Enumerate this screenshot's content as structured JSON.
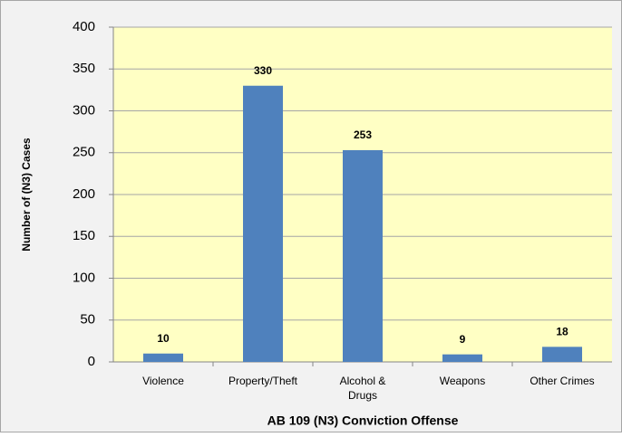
{
  "chart_data": {
    "type": "bar",
    "x_label": "AB 109 (N3) Conviction Offense",
    "y_label": "Number of (N3) Cases",
    "categories": [
      "Violence",
      "Property/Theft",
      "Alcohol & Drugs",
      "Weapons",
      "Other Crimes"
    ],
    "values": [
      10,
      330,
      253,
      9,
      18
    ],
    "color": "#4f81bd",
    "ylim": [
      0,
      400
    ],
    "yticks": [
      0,
      50,
      100,
      150,
      200,
      250,
      300,
      350,
      400
    ],
    "grid": true
  }
}
